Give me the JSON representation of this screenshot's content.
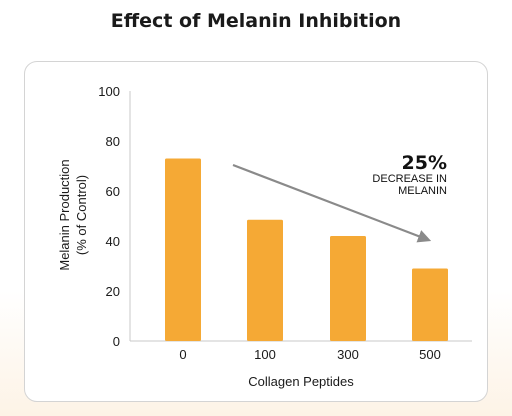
{
  "chart_data": {
    "type": "bar",
    "title": "Effect of Melanin Inhibition",
    "xlabel": "Collagen Peptides",
    "ylabel_line1": "Melanin Production",
    "ylabel_line2": "(% of Control)",
    "categories": [
      "0",
      "100",
      "300",
      "500"
    ],
    "values": [
      73,
      48.5,
      42,
      29
    ],
    "ylim": [
      0,
      100
    ],
    "yticks": [
      "0",
      "20",
      "40",
      "60",
      "80",
      "100"
    ],
    "grid": false,
    "bar_color": "#f5a935",
    "annotation": {
      "value": "25%",
      "line1": "DECREASE IN",
      "line2": "MELANIN",
      "arrow_color": "#8a8a8a"
    }
  }
}
